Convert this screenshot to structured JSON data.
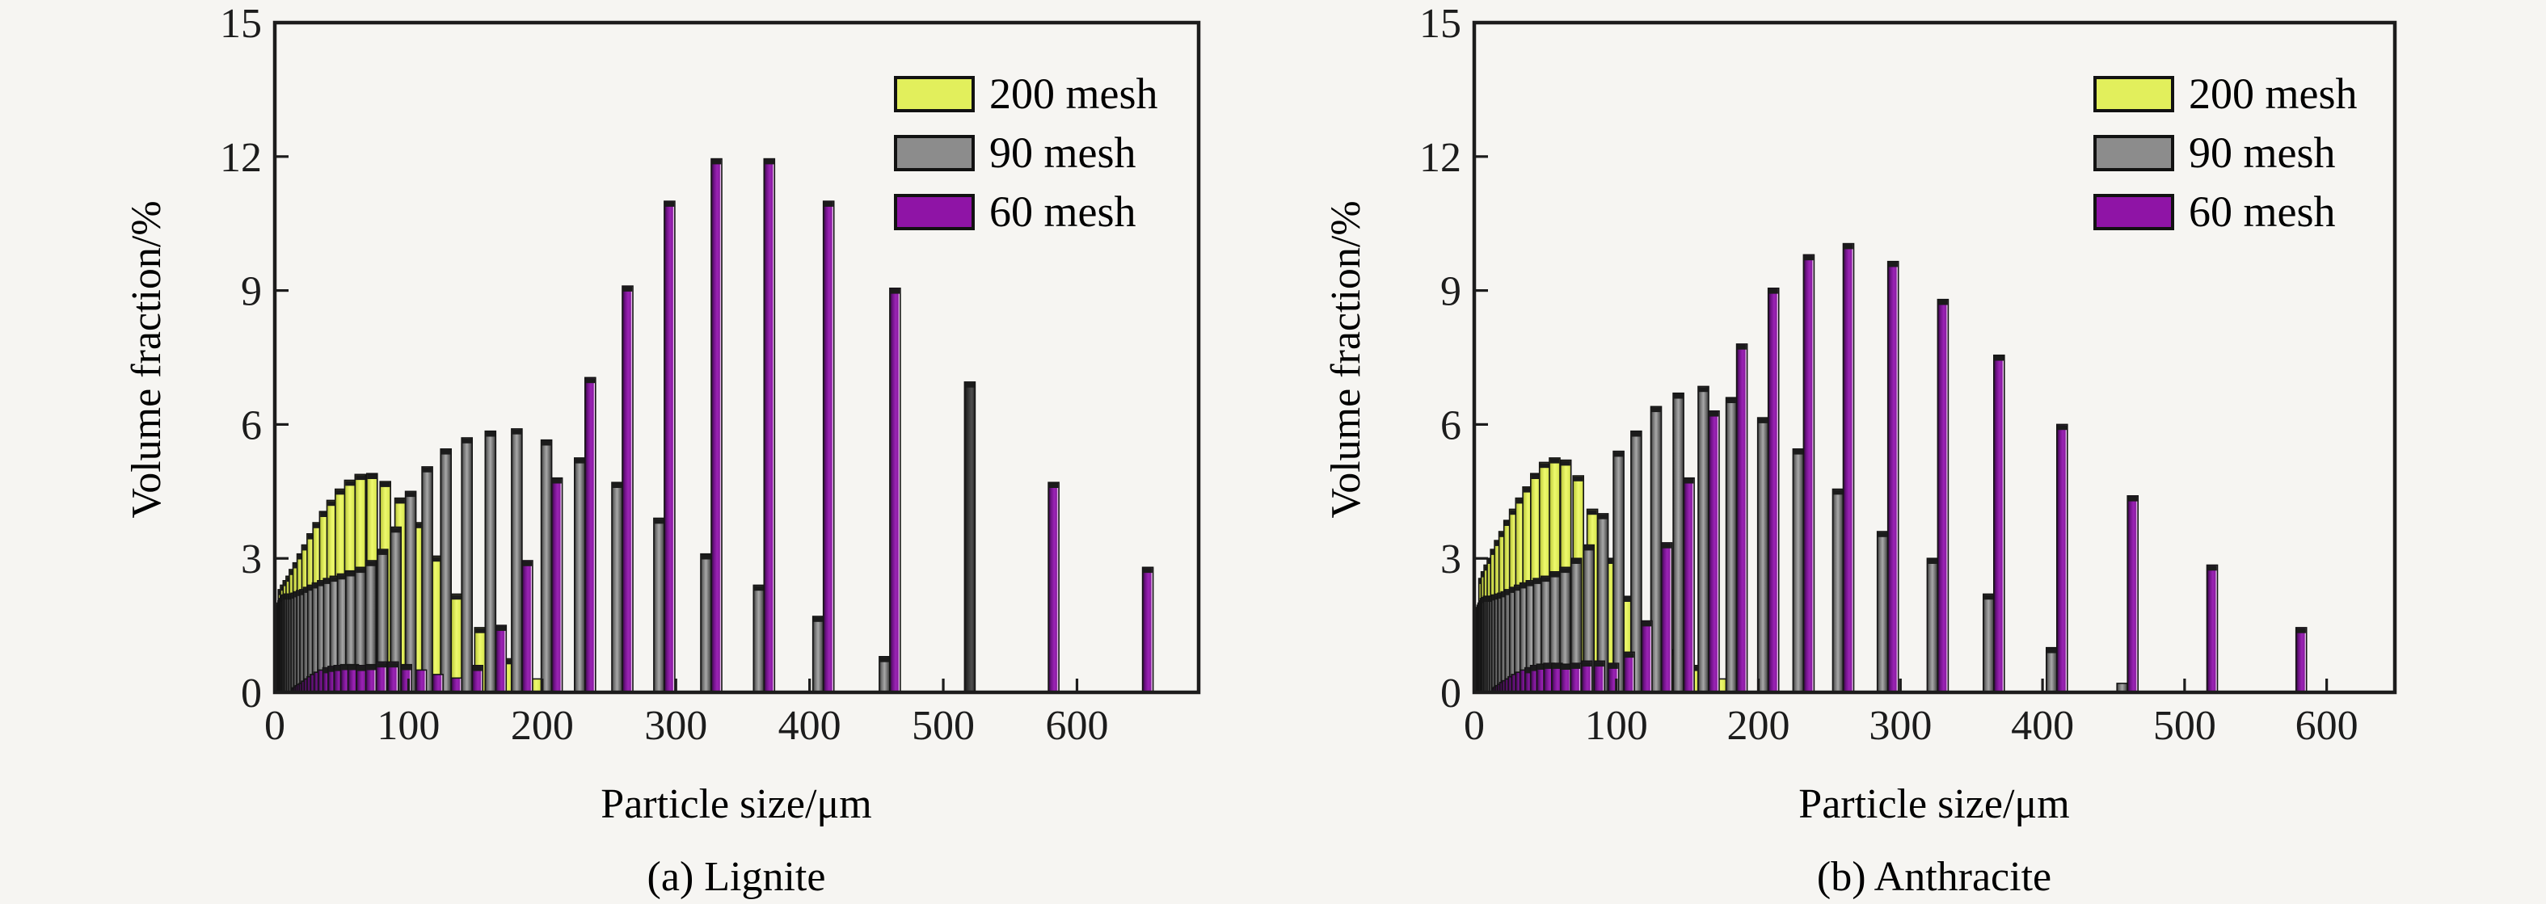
{
  "figure": {
    "background": "#f6f5f2",
    "axis_color": "#1c1c1c",
    "text_color": "#1c1c1c",
    "bar_outline": "#141414"
  },
  "chart_data": [
    {
      "type": "bar",
      "panel": "a",
      "caption": "(a) Lignite",
      "xlabel": "Particle size/μm",
      "ylabel": "Volume fraction/%",
      "xlim": [
        0,
        691
      ],
      "ylim": [
        0,
        15
      ],
      "xticks": [
        0,
        100,
        200,
        300,
        400,
        500,
        600
      ],
      "yticks": [
        0,
        3,
        6,
        9,
        12,
        15
      ],
      "grid": false,
      "legend_position": "upper-right",
      "legend": [
        {
          "label": "200 mesh",
          "color": "#e2ef5c"
        },
        {
          "label": "90 mesh",
          "color": "#8c8c8c"
        },
        {
          "label": "60 mesh",
          "color": "#8f14a6"
        }
      ],
      "series": [
        {
          "name": "200 mesh",
          "fill": "yellow",
          "points": [
            [
              14.3,
              2.3
            ],
            [
              16,
              2.4
            ],
            [
              18,
              2.5
            ],
            [
              20.2,
              2.6
            ],
            [
              22.6,
              2.75
            ],
            [
              25.4,
              2.9
            ],
            [
              28.5,
              3.1
            ],
            [
              32,
              3.3
            ],
            [
              35.9,
              3.55
            ],
            [
              40.3,
              3.8
            ],
            [
              45.3,
              4.05
            ],
            [
              50.8,
              4.3
            ],
            [
              57,
              4.55
            ],
            [
              64,
              4.75
            ],
            [
              71.8,
              4.88
            ],
            [
              80.6,
              4.9
            ],
            [
              90.5,
              4.72
            ],
            [
              101.6,
              4.35
            ],
            [
              114,
              3.8
            ],
            [
              128,
              3.05
            ],
            [
              143.7,
              2.2
            ],
            [
              161.3,
              1.45
            ],
            [
              181,
              0.75
            ],
            [
              203.2,
              0.3
            ]
          ]
        },
        {
          "name": "90 mesh",
          "fill": "gray",
          "points": [
            [
              4,
              1.85
            ],
            [
              4.5,
              1.9
            ],
            [
              5,
              1.95
            ],
            [
              5.7,
              2.0
            ],
            [
              6.3,
              2.05
            ],
            [
              7.1,
              2.1
            ],
            [
              8,
              2.15
            ],
            [
              9,
              2.18
            ],
            [
              10.1,
              2.2
            ],
            [
              11.3,
              2.2
            ],
            [
              12.7,
              2.2
            ],
            [
              14.3,
              2.2
            ],
            [
              16,
              2.22
            ],
            [
              18,
              2.25
            ],
            [
              20.2,
              2.28
            ],
            [
              22.6,
              2.3
            ],
            [
              25.4,
              2.35
            ],
            [
              28.5,
              2.4
            ],
            [
              32,
              2.45
            ],
            [
              35.9,
              2.5
            ],
            [
              40.3,
              2.55
            ],
            [
              45.3,
              2.6
            ],
            [
              50.8,
              2.65
            ],
            [
              57,
              2.72
            ],
            [
              64,
              2.8
            ],
            [
              71.8,
              2.95
            ],
            [
              80.6,
              3.2
            ],
            [
              90.5,
              3.7
            ],
            [
              101.6,
              4.5
            ],
            [
              114,
              5.05
            ],
            [
              128,
              5.45
            ],
            [
              143.7,
              5.7
            ],
            [
              161.3,
              5.85
            ],
            [
              181,
              5.9
            ],
            [
              203.2,
              5.65
            ],
            [
              228.1,
              5.25
            ],
            [
              256,
              4.7
            ],
            [
              287.4,
              3.9
            ],
            [
              322.5,
              3.1
            ],
            [
              362,
              2.4
            ],
            [
              406.4,
              1.7
            ],
            [
              456.1,
              0.8
            ]
          ]
        },
        {
          "name": "60 mesh",
          "fill": "purple",
          "points": [
            [
              9,
              0.1
            ],
            [
              10.1,
              0.12
            ],
            [
              11.3,
              0.15
            ],
            [
              12.7,
              0.18
            ],
            [
              14.3,
              0.2
            ],
            [
              16,
              0.25
            ],
            [
              18,
              0.3
            ],
            [
              20.2,
              0.35
            ],
            [
              22.6,
              0.4
            ],
            [
              25.4,
              0.45
            ],
            [
              28.5,
              0.5
            ],
            [
              32,
              0.55
            ],
            [
              35.9,
              0.58
            ],
            [
              40.3,
              0.6
            ],
            [
              45.3,
              0.62
            ],
            [
              50.8,
              0.62
            ],
            [
              57,
              0.6
            ],
            [
              64,
              0.62
            ],
            [
              71.8,
              0.68
            ],
            [
              80.6,
              0.68
            ],
            [
              90.5,
              0.62
            ],
            [
              101.6,
              0.5
            ],
            [
              114,
              0.4
            ],
            [
              128,
              0.32
            ],
            [
              143.7,
              0.6
            ],
            [
              161.3,
              1.5
            ],
            [
              181,
              2.95
            ],
            [
              203.2,
              4.8
            ],
            [
              228.1,
              7.05
            ],
            [
              256,
              9.1
            ],
            [
              287.4,
              11.0
            ],
            [
              322.5,
              11.95
            ],
            [
              362,
              11.95
            ],
            [
              406.4,
              11.0
            ],
            [
              456.1,
              9.05
            ],
            [
              512,
              6.95,
              "dark"
            ],
            [
              574.7,
              4.7
            ],
            [
              645.1,
              2.8
            ]
          ]
        }
      ]
    },
    {
      "type": "bar",
      "panel": "b",
      "caption": "(b) Anthracite",
      "xlabel": "Particle size/μm",
      "ylabel": "Volume fraction/%",
      "xlim": [
        0,
        648
      ],
      "ylim": [
        0,
        15
      ],
      "xticks": [
        0,
        100,
        200,
        300,
        400,
        500,
        600
      ],
      "yticks": [
        0,
        3,
        6,
        9,
        12,
        15
      ],
      "grid": false,
      "legend_position": "upper-right",
      "legend": [
        {
          "label": "200 mesh",
          "color": "#e2ef5c"
        },
        {
          "label": "90 mesh",
          "color": "#8c8c8c"
        },
        {
          "label": "60 mesh",
          "color": "#8f14a6"
        }
      ],
      "series": [
        {
          "name": "200 mesh",
          "fill": "yellow",
          "points": [
            [
              14.3,
              2.55
            ],
            [
              16,
              2.7
            ],
            [
              18,
              2.85
            ],
            [
              20.2,
              3.0
            ],
            [
              22.6,
              3.2
            ],
            [
              25.4,
              3.4
            ],
            [
              28.5,
              3.6
            ],
            [
              32,
              3.85
            ],
            [
              35.9,
              4.1
            ],
            [
              40.3,
              4.35
            ],
            [
              45.3,
              4.6
            ],
            [
              50.8,
              4.9
            ],
            [
              57,
              5.15
            ],
            [
              64,
              5.25
            ],
            [
              71.8,
              5.2
            ],
            [
              80.6,
              4.85
            ],
            [
              90.5,
              4.1
            ],
            [
              101.6,
              3.0
            ],
            [
              114,
              2.15
            ],
            [
              128,
              1.45
            ],
            [
              143.7,
              0.95
            ],
            [
              161.3,
              0.6
            ],
            [
              181,
              0.3
            ]
          ]
        },
        {
          "name": "90 mesh",
          "fill": "gray",
          "points": [
            [
              4,
              1.8
            ],
            [
              4.5,
              1.85
            ],
            [
              5,
              1.9
            ],
            [
              5.7,
              1.95
            ],
            [
              6.3,
              2.0
            ],
            [
              7.1,
              2.05
            ],
            [
              8,
              2.1
            ],
            [
              9,
              2.12
            ],
            [
              10.1,
              2.15
            ],
            [
              11.3,
              2.15
            ],
            [
              12.7,
              2.15
            ],
            [
              14.3,
              2.15
            ],
            [
              16,
              2.18
            ],
            [
              18,
              2.2
            ],
            [
              20.2,
              2.22
            ],
            [
              22.6,
              2.25
            ],
            [
              25.4,
              2.3
            ],
            [
              28.5,
              2.35
            ],
            [
              32,
              2.4
            ],
            [
              35.9,
              2.45
            ],
            [
              40.3,
              2.5
            ],
            [
              45.3,
              2.55
            ],
            [
              50.8,
              2.6
            ],
            [
              57,
              2.7
            ],
            [
              64,
              2.8
            ],
            [
              71.8,
              3.0
            ],
            [
              80.6,
              3.3
            ],
            [
              90.5,
              4.0
            ],
            [
              101.6,
              5.4
            ],
            [
              114,
              5.85
            ],
            [
              128,
              6.4
            ],
            [
              143.7,
              6.7
            ],
            [
              161.3,
              6.85
            ],
            [
              181,
              6.6
            ],
            [
              203.2,
              6.15
            ],
            [
              228.1,
              5.45
            ],
            [
              256,
              4.55
            ],
            [
              287.4,
              3.6
            ],
            [
              322.5,
              3.0
            ],
            [
              362,
              2.2
            ],
            [
              406.4,
              1.0
            ],
            [
              456.1,
              0.2
            ]
          ]
        },
        {
          "name": "60 mesh",
          "fill": "purple",
          "points": [
            [
              9,
              0.1
            ],
            [
              10.1,
              0.12
            ],
            [
              11.3,
              0.15
            ],
            [
              12.7,
              0.18
            ],
            [
              14.3,
              0.22
            ],
            [
              16,
              0.26
            ],
            [
              18,
              0.3
            ],
            [
              20.2,
              0.35
            ],
            [
              22.6,
              0.4
            ],
            [
              25.4,
              0.45
            ],
            [
              28.5,
              0.5
            ],
            [
              32,
              0.55
            ],
            [
              35.9,
              0.6
            ],
            [
              40.3,
              0.63
            ],
            [
              45.3,
              0.65
            ],
            [
              50.8,
              0.65
            ],
            [
              57,
              0.63
            ],
            [
              64,
              0.65
            ],
            [
              71.8,
              0.7
            ],
            [
              80.6,
              0.7
            ],
            [
              90.5,
              0.65
            ],
            [
              101.6,
              0.9
            ],
            [
              114,
              1.6
            ],
            [
              128,
              3.35
            ],
            [
              143.7,
              4.8
            ],
            [
              161.3,
              6.3
            ],
            [
              181,
              7.8
            ],
            [
              203.2,
              9.05
            ],
            [
              228.1,
              9.8
            ],
            [
              256,
              10.05
            ],
            [
              287.4,
              9.65
            ],
            [
              322.5,
              8.8
            ],
            [
              362,
              7.55
            ],
            [
              406.4,
              6.0
            ],
            [
              456.1,
              4.4
            ],
            [
              512,
              2.85
            ],
            [
              574.7,
              1.45
            ],
            [
              645.1,
              0.3
            ]
          ]
        }
      ]
    }
  ]
}
